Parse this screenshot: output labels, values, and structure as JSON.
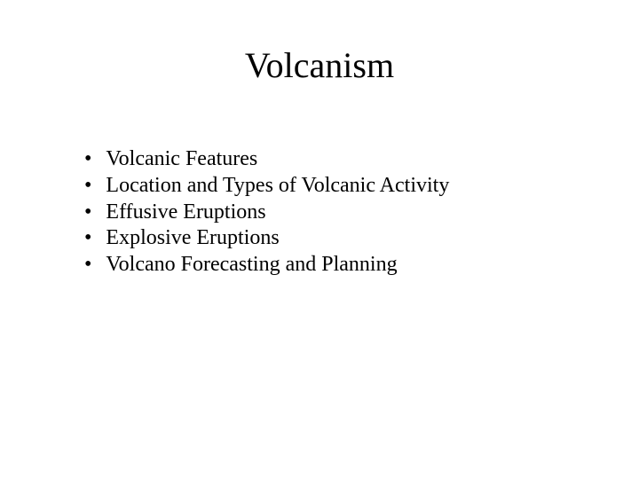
{
  "title": "Volcanism",
  "bullets": [
    "Volcanic Features",
    "Location and Types of Volcanic Activity",
    "Effusive Eruptions",
    "Explosive Eruptions",
    "Volcano Forecasting and Planning"
  ],
  "colors": {
    "background": "#ffffff",
    "text": "#000000"
  },
  "typography": {
    "font_family": "Times New Roman",
    "title_fontsize": 40,
    "bullet_fontsize": 24
  }
}
